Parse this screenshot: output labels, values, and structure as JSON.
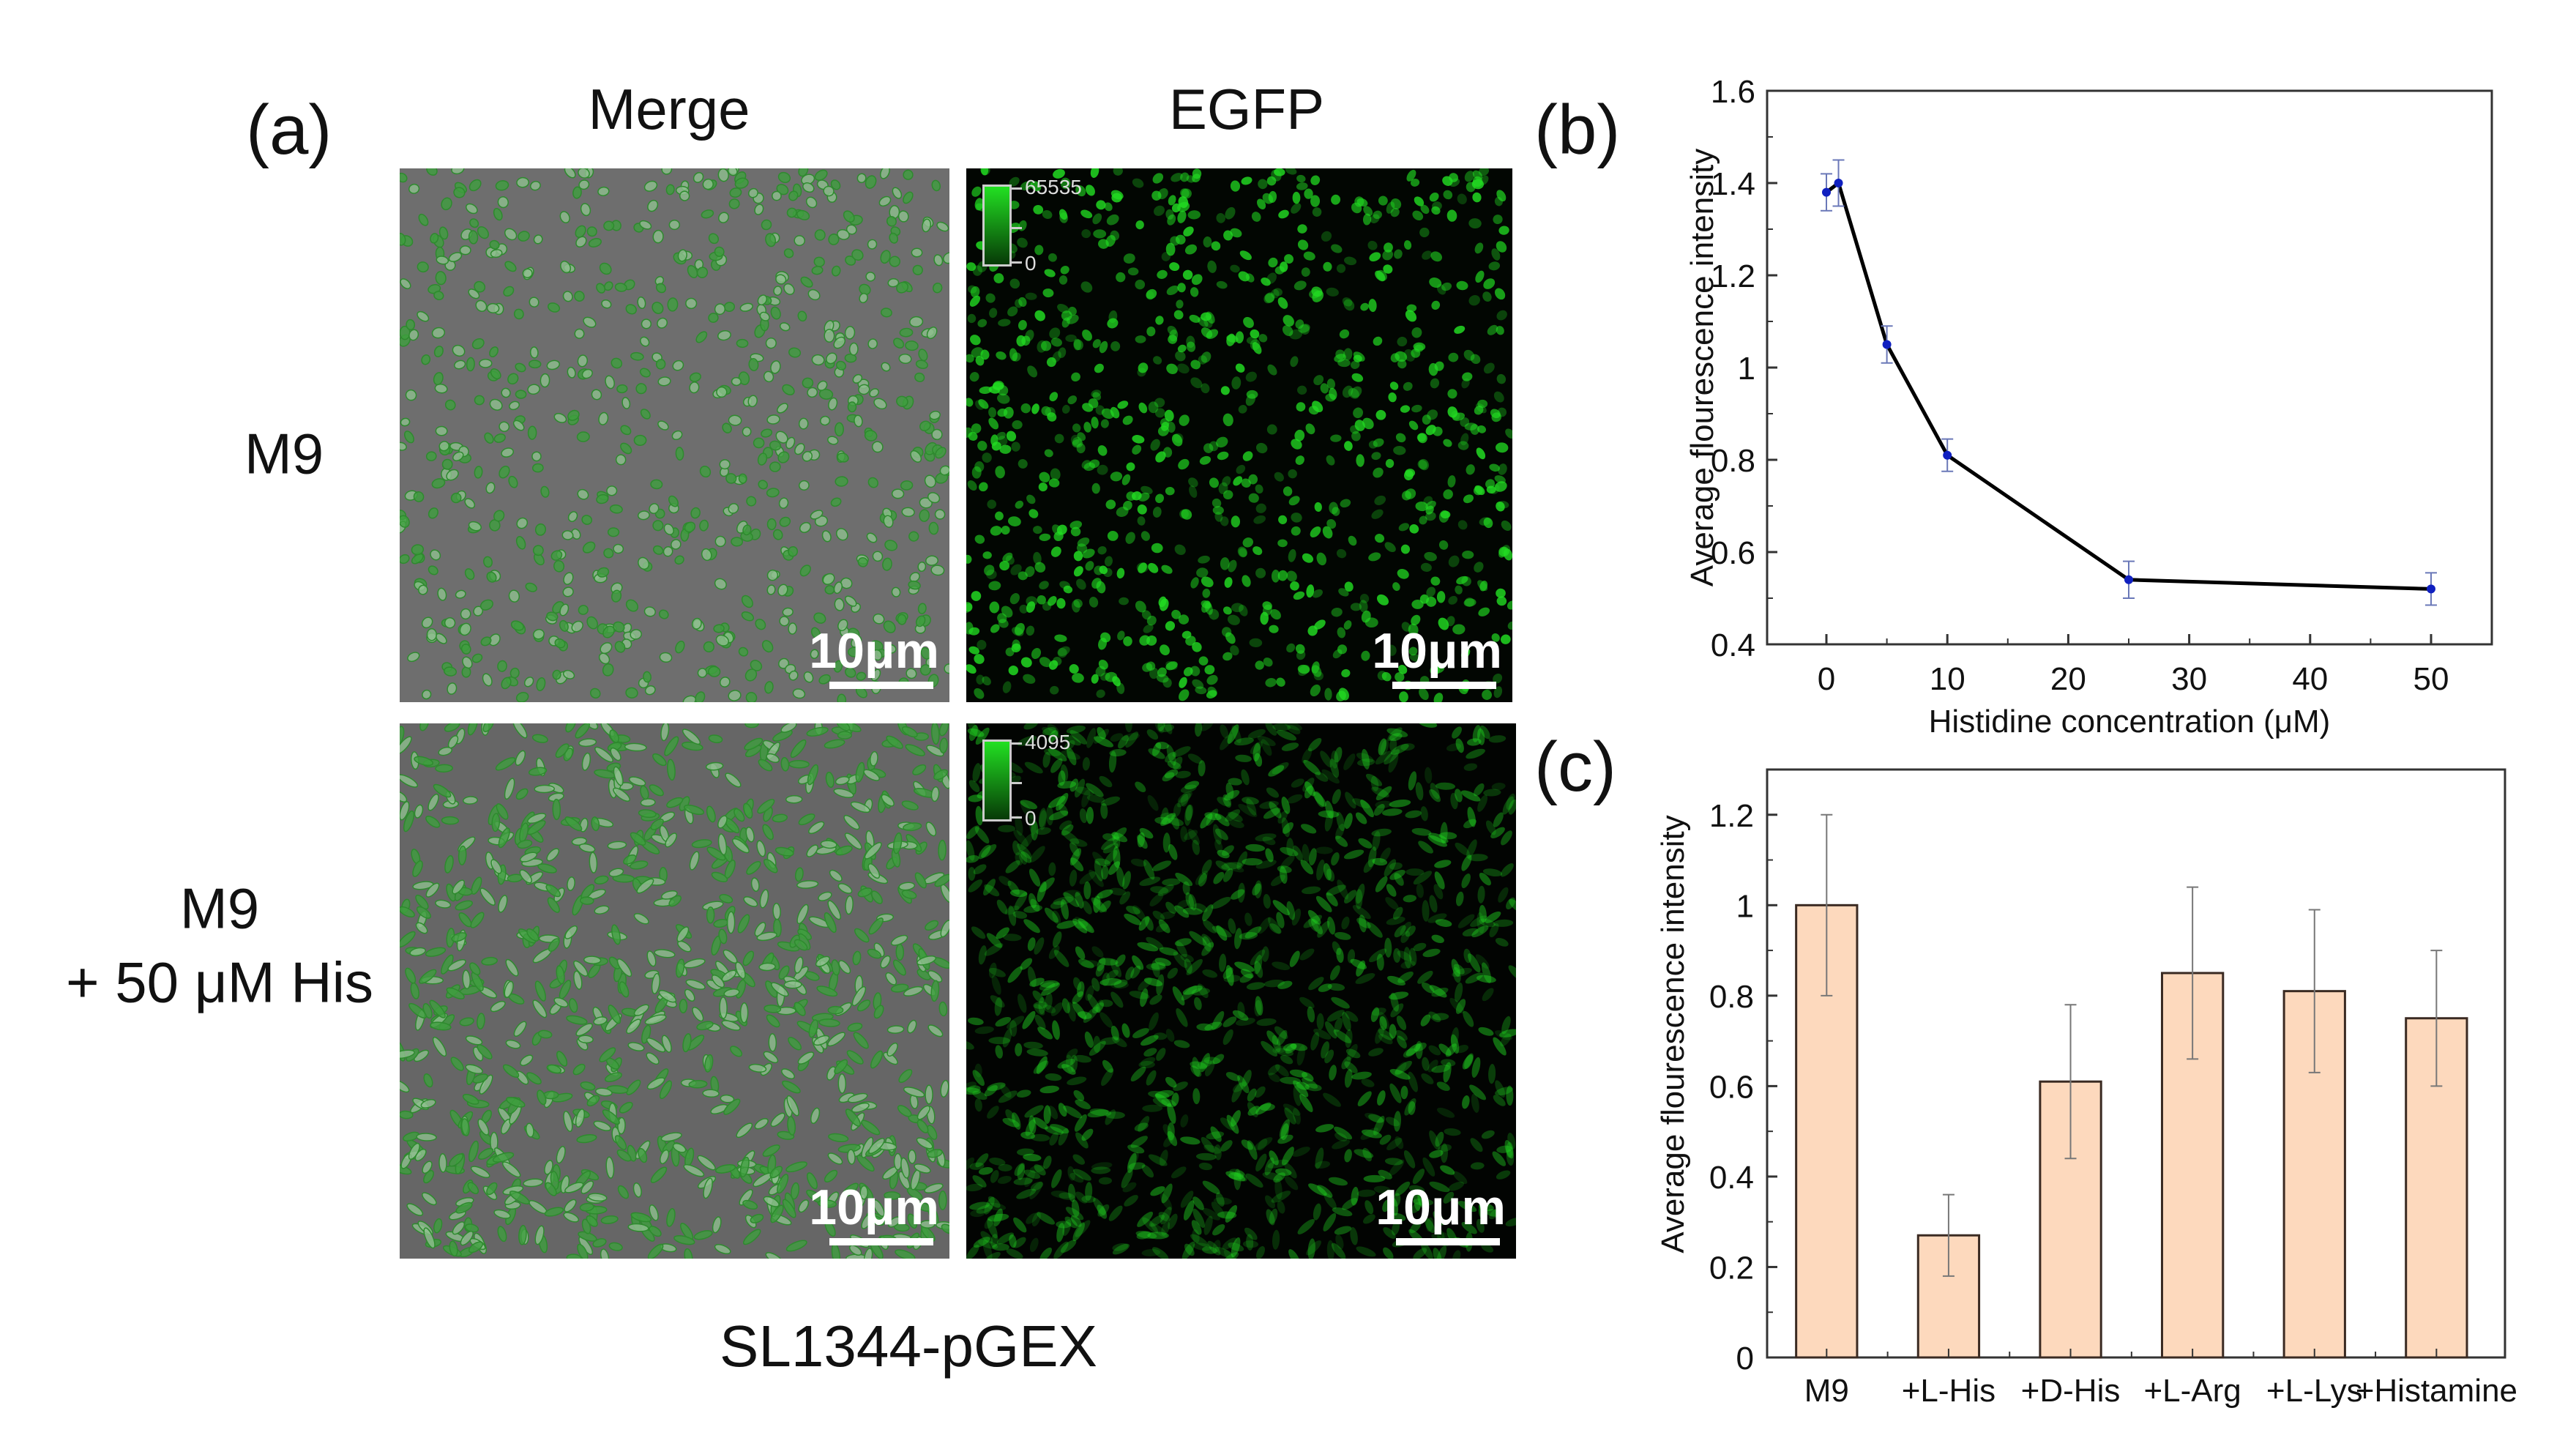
{
  "panel_a": {
    "label": "(a)",
    "columns": [
      "Merge",
      "EGFP"
    ],
    "rows": [
      {
        "label_lines": [
          "M9"
        ]
      },
      {
        "label_lines": [
          "M9",
          "+ 50 μM His"
        ]
      }
    ],
    "scale_bar": "10μm",
    "colorbars": [
      {
        "max": "65535",
        "min": "0"
      },
      {
        "max": "4095",
        "min": "0"
      }
    ],
    "caption": "SL1344-pGEX"
  },
  "colors": {
    "line": "#000000",
    "marker": "#1020c0",
    "errorbar_b": "#6a78b8",
    "bar_fill": "#fdd9bd",
    "bar_edge": "#3a2a22",
    "egfp": "#22dd22"
  },
  "chart_data": [
    {
      "panel": "(b)",
      "type": "line",
      "title": "",
      "xlabel": "Histidine concentration (μM)",
      "ylabel": "Average flourescence intensity",
      "x": [
        0,
        1,
        5,
        10,
        25,
        50
      ],
      "y": [
        1.38,
        1.4,
        1.05,
        0.81,
        0.54,
        0.52
      ],
      "yerr": [
        0.04,
        0.05,
        0.04,
        0.035,
        0.04,
        0.035
      ],
      "xlim": [
        -3,
        55
      ],
      "ylim": [
        0.4,
        1.6
      ],
      "xticks": [
        "0",
        "10",
        "20",
        "30",
        "40",
        "50"
      ],
      "xtick_values": [
        0,
        10,
        20,
        30,
        40,
        50
      ],
      "yticks": [
        "0.4",
        "0.6",
        "0.8",
        "1",
        "1.2",
        "1.4",
        "1.6"
      ],
      "ytick_values": [
        0.4,
        0.6,
        0.8,
        1.0,
        1.2,
        1.4,
        1.6
      ],
      "grid": false
    },
    {
      "panel": "(c)",
      "type": "bar",
      "title": "",
      "xlabel": "",
      "ylabel": "Average flourescence intensity",
      "categories": [
        "M9",
        "+L-His",
        "+D-His",
        "+L-Arg",
        "+L-Lys",
        "+Histamine"
      ],
      "values": [
        1.0,
        0.27,
        0.61,
        0.85,
        0.81,
        0.75
      ],
      "yerr": [
        0.2,
        0.09,
        0.17,
        0.19,
        0.18,
        0.15
      ],
      "ylim": [
        0,
        1.3
      ],
      "yticks": [
        "0",
        "0.2",
        "0.4",
        "0.6",
        "0.8",
        "1",
        "1.2"
      ],
      "ytick_values": [
        0,
        0.2,
        0.4,
        0.6,
        0.8,
        1.0,
        1.2
      ],
      "grid": false
    }
  ]
}
